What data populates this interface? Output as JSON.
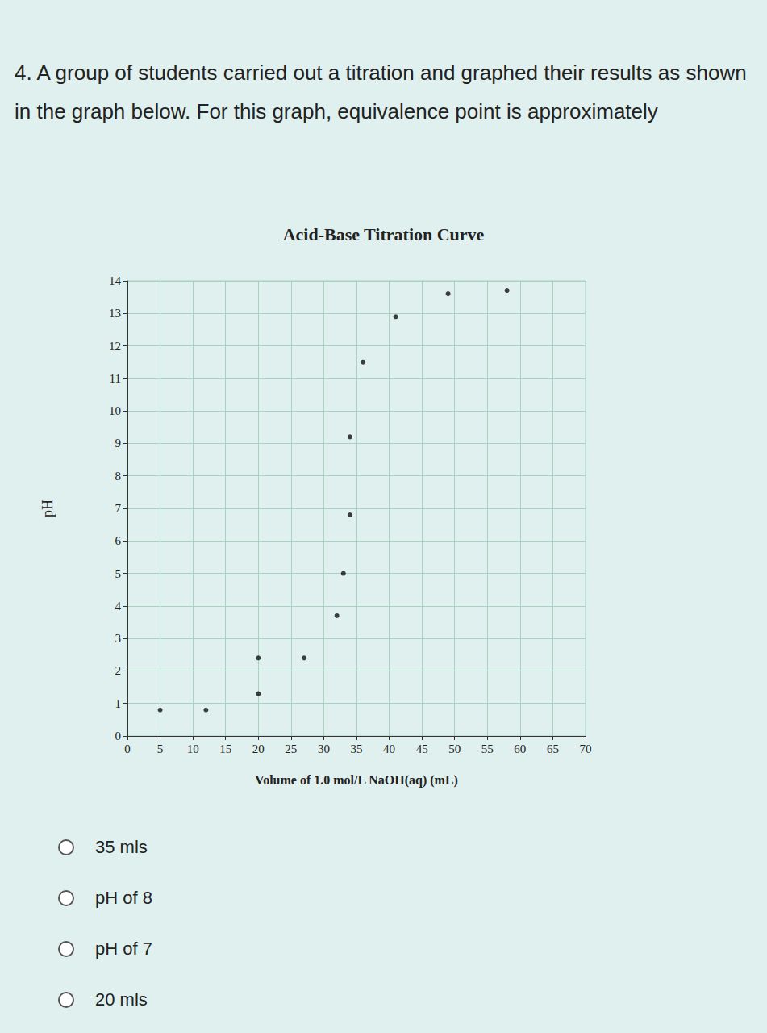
{
  "question": "4. A group of students carried out a titration and graphed their results as shown in the graph below. For this graph, equivalence point is approximately",
  "options": [
    "35 mls",
    "pH of 8",
    "pH of 7",
    "20 mls"
  ],
  "chart_data": {
    "type": "scatter",
    "title": "Acid-Base Titration Curve",
    "x_label": "Volume of 1.0 mol/L NaOH(aq) (mL)",
    "y_label": "pH",
    "x": [
      5,
      12,
      20,
      20,
      27,
      32,
      33,
      34,
      34,
      36,
      41,
      49,
      58
    ],
    "values": [
      0.8,
      0.8,
      1.3,
      2.4,
      2.4,
      3.7,
      5.0,
      6.8,
      9.2,
      11.5,
      12.9,
      13.6,
      13.7
    ],
    "color": "#111111",
    "marker": "circle",
    "xlim": [
      0,
      70
    ],
    "xticks": [
      0,
      5,
      10,
      15,
      20,
      25,
      30,
      35,
      40,
      45,
      50,
      55,
      60,
      65,
      70
    ],
    "ylim": [
      0,
      14
    ],
    "yticks": [
      0,
      1,
      2,
      3,
      4,
      5,
      6,
      7,
      8,
      9,
      10,
      11,
      12,
      13,
      14
    ],
    "grid": true
  }
}
